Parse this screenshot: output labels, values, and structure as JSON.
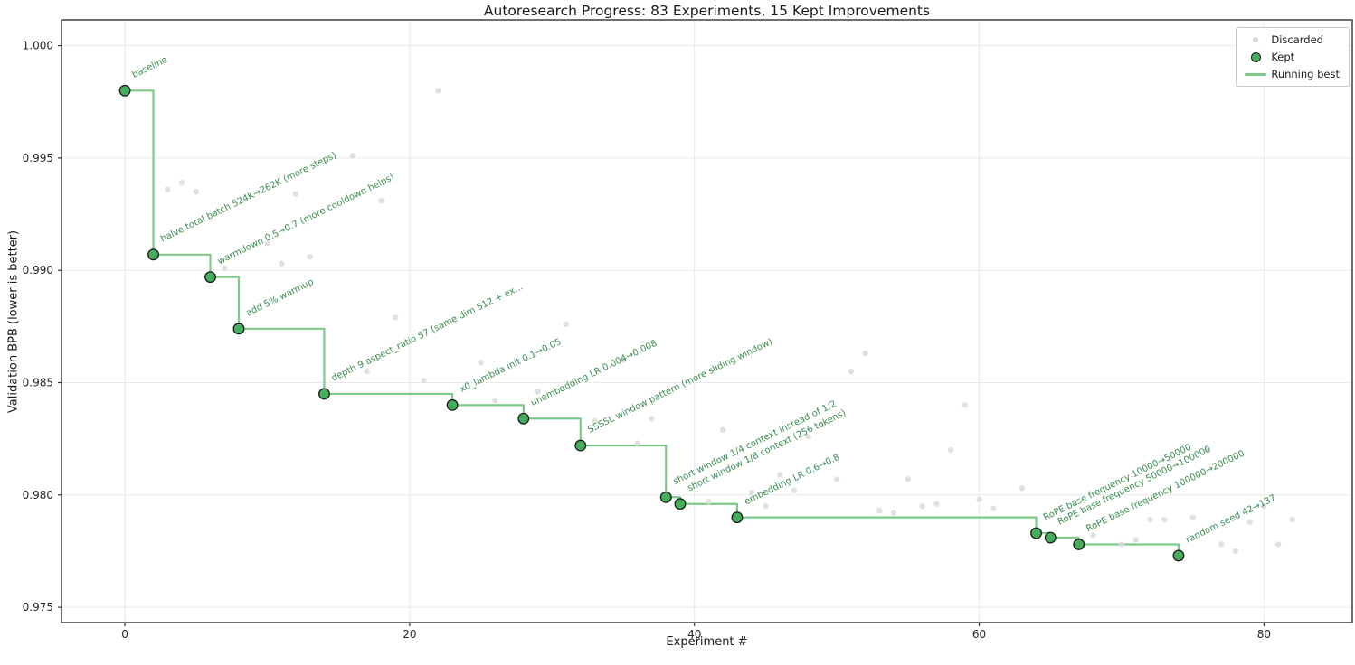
{
  "figure": {
    "title": "Autoresearch Progress: 83 Experiments, 15 Kept Improvements",
    "xlabel": "Experiment #",
    "ylabel": "Validation BPB (lower is better)"
  },
  "legend": {
    "position": "upper right",
    "items": [
      {
        "label": "Discarded",
        "marker": "small-gray-dot"
      },
      {
        "label": "Kept",
        "marker": "green-dot"
      },
      {
        "label": "Running best",
        "marker": "green-line"
      }
    ]
  },
  "colors": {
    "kept": "#45ad5c",
    "kept_edge": "#1c1c1c",
    "discarded": "#dcdcdc",
    "running_best_line": "#7ec98a",
    "annotation_text": "#3a8d50",
    "grid": "#e9e9e9",
    "spine": "#333333",
    "tick_label": "#262626"
  },
  "chart_data": {
    "type": "scatter",
    "title": "Autoresearch Progress: 83 Experiments, 15 Kept Improvements",
    "xlabel": "Experiment #",
    "ylabel": "Validation BPB (lower is better)",
    "grid": true,
    "legend_position": "upper right",
    "xlim": [
      -4.45,
      86.2
    ],
    "ylim": [
      0.97432,
      1.00115
    ],
    "x_ticks": [
      0,
      20,
      40,
      60,
      80
    ],
    "y_ticks": [
      1.0,
      0.995,
      0.99,
      0.985,
      0.98,
      0.975
    ],
    "y_tick_labels": [
      "1.000",
      "0.995",
      "0.990",
      "0.985",
      "0.980",
      "0.975"
    ],
    "series": [
      {
        "name": "Kept",
        "type": "scatter-step",
        "points": [
          {
            "x": 0,
            "y": 0.998,
            "label": "baseline"
          },
          {
            "x": 2,
            "y": 0.9907,
            "label": "halve total batch 524K→262K (more steps)"
          },
          {
            "x": 6,
            "y": 0.9897,
            "label": "warmdown 0.5→0.7 (more cooldown helps)"
          },
          {
            "x": 8,
            "y": 0.9874,
            "label": "add 5% warmup"
          },
          {
            "x": 14,
            "y": 0.9845,
            "label": "depth 9 aspect_ratio 57 (same dim 512 + ex..."
          },
          {
            "x": 23,
            "y": 0.984,
            "label": "x0_lambda init 0.1→0.05"
          },
          {
            "x": 28,
            "y": 0.9834,
            "label": "unembedding LR 0.004→0.008"
          },
          {
            "x": 32,
            "y": 0.9822,
            "label": "SSSSL window pattern (more sliding window)"
          },
          {
            "x": 38,
            "y": 0.9799,
            "label": "short window 1/4 context instead of 1/2"
          },
          {
            "x": 39,
            "y": 0.9796,
            "label": "short window 1/8 context (256 tokens)"
          },
          {
            "x": 43,
            "y": 0.979,
            "label": "embedding LR 0.6→0.8"
          },
          {
            "x": 64,
            "y": 0.9783,
            "label": "RoPE base frequency 10000→50000"
          },
          {
            "x": 65,
            "y": 0.9781,
            "label": "RoPE base frequency 50000→100000"
          },
          {
            "x": 67,
            "y": 0.9778,
            "label": "RoPE base frequency 100000→200000"
          },
          {
            "x": 74,
            "y": 0.9773,
            "label": "random seed 42→137"
          }
        ]
      },
      {
        "name": "Discarded",
        "type": "scatter",
        "points": [
          [
            3,
            0.9936
          ],
          [
            4,
            0.9939
          ],
          [
            5,
            0.9935
          ],
          [
            7,
            0.9901
          ],
          [
            10,
            0.9912
          ],
          [
            11,
            0.9903
          ],
          [
            12,
            0.9934
          ],
          [
            13,
            0.9906
          ],
          [
            16,
            0.9951
          ],
          [
            17,
            0.9855
          ],
          [
            18,
            0.9931
          ],
          [
            19,
            0.9879
          ],
          [
            21,
            0.9851
          ],
          [
            22,
            0.998
          ],
          [
            25,
            0.9859
          ],
          [
            26,
            0.9842
          ],
          [
            29,
            0.9846
          ],
          [
            31,
            0.9876
          ],
          [
            33,
            0.9833
          ],
          [
            35,
            0.986
          ],
          [
            36,
            0.9823
          ],
          [
            37,
            0.9834
          ],
          [
            41,
            0.9797
          ],
          [
            42,
            0.9829
          ],
          [
            44,
            0.9801
          ],
          [
            45,
            0.9795
          ],
          [
            46,
            0.9809
          ],
          [
            47,
            0.9802
          ],
          [
            48,
            0.9826
          ],
          [
            49,
            0.9831
          ],
          [
            50,
            0.9807
          ],
          [
            51,
            0.9855
          ],
          [
            52,
            0.9863
          ],
          [
            53,
            0.9793
          ],
          [
            54,
            0.9792
          ],
          [
            55,
            0.9807
          ],
          [
            56,
            0.9795
          ],
          [
            57,
            0.9796
          ],
          [
            58,
            0.982
          ],
          [
            59,
            0.984
          ],
          [
            60,
            0.9798
          ],
          [
            61,
            0.9794
          ],
          [
            63,
            0.9803
          ],
          [
            68,
            0.9782
          ],
          [
            70,
            0.9778
          ],
          [
            71,
            0.978
          ],
          [
            72,
            0.9789
          ],
          [
            73,
            0.9789
          ],
          [
            75,
            0.979
          ],
          [
            76,
            0.982
          ],
          [
            77,
            0.9778
          ],
          [
            78,
            0.9775
          ],
          [
            79,
            0.9788
          ],
          [
            80,
            0.9795
          ],
          [
            81,
            0.9778
          ],
          [
            82,
            0.9789
          ]
        ]
      },
      {
        "name": "Running best",
        "type": "step-post-from-kept"
      }
    ]
  }
}
